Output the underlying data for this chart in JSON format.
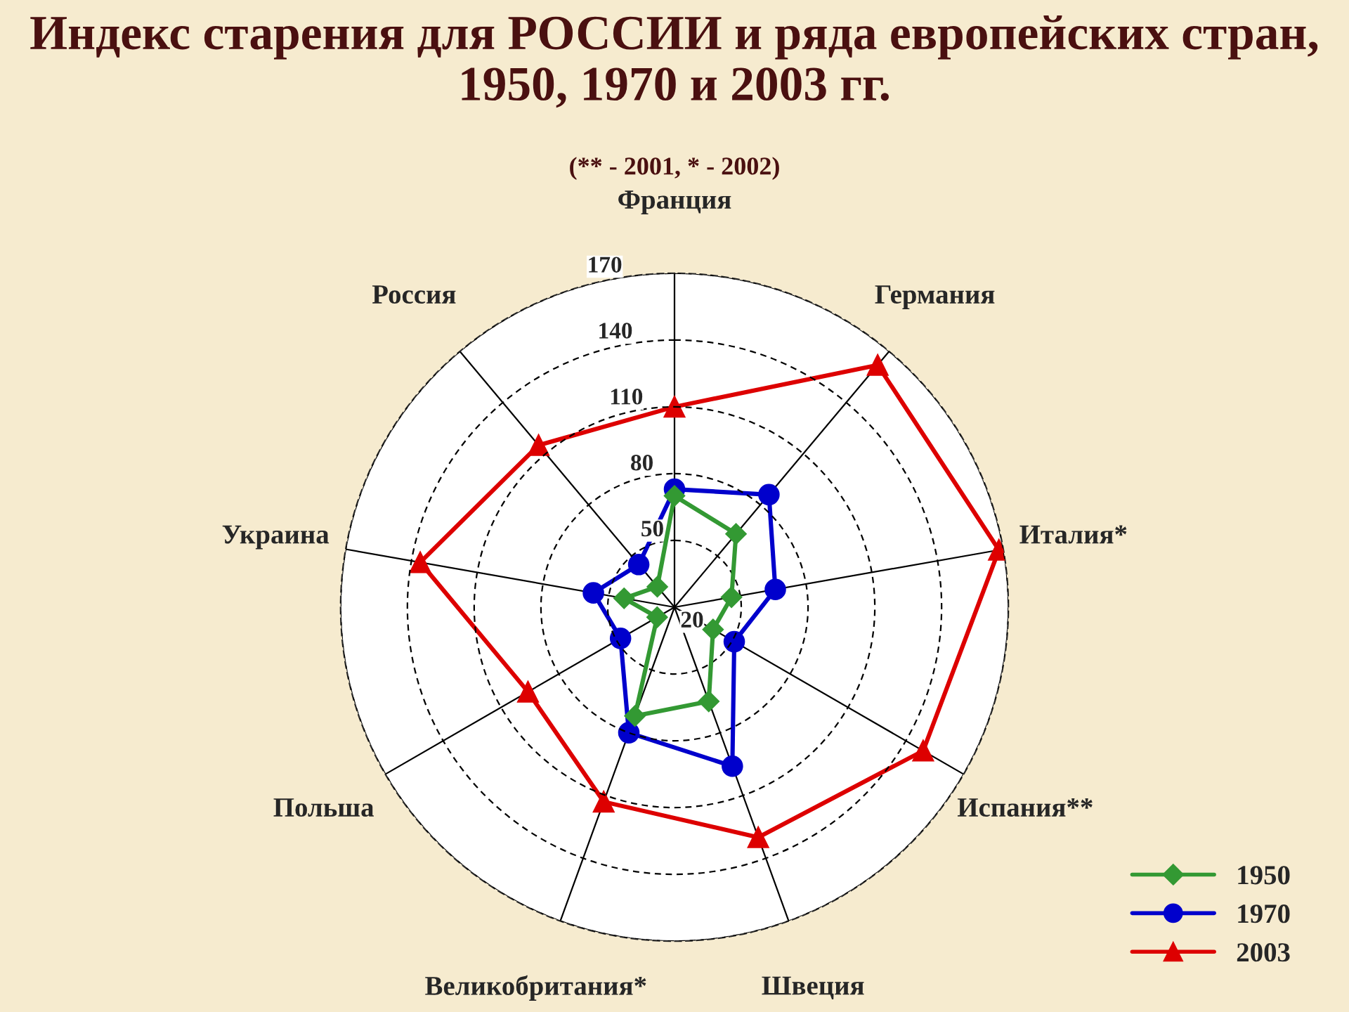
{
  "chart_data": {
    "type": "radar",
    "title": "Индекс старения для РОССИИ и ряда европейских стран, 1950, 1970 и 2003 гг.",
    "subtitle": "(** - 2001, * - 2002)",
    "categories": [
      "Франция",
      "Германия",
      "Италия*",
      "Испания**",
      "Швеция",
      "Великобритания*",
      "Польша",
      "Украина",
      "Россия"
    ],
    "ylim": [
      20,
      170
    ],
    "yticks": [
      20,
      50,
      80,
      110,
      140,
      170
    ],
    "grid": true,
    "legend": "bottom right",
    "series": [
      {
        "name": "1950",
        "color": "#339933",
        "marker": "diamond",
        "values": [
          70,
          63,
          46,
          40,
          65,
          72,
          29,
          43,
          32
        ]
      },
      {
        "name": "1970",
        "color": "#0000cc",
        "marker": "circle",
        "values": [
          73,
          86,
          66,
          51,
          96,
          80,
          48,
          57,
          45
        ]
      },
      {
        "name": "2003",
        "color": "#dd0000",
        "marker": "triangle",
        "values": [
          110,
          162,
          168,
          149,
          130,
          113,
          96,
          136,
          115
        ]
      }
    ]
  }
}
